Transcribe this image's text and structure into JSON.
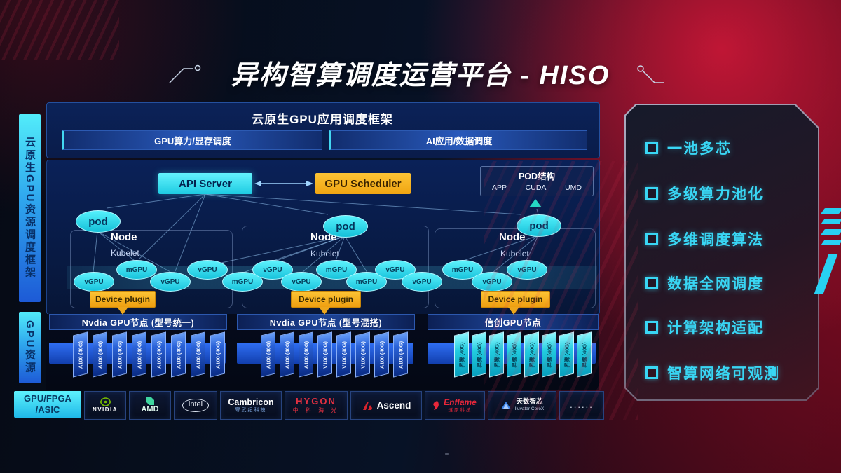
{
  "title": "异构智算调度运营平台 - HISO",
  "sidebar": {
    "framework_label": "云原生GPU资源调度框架",
    "resource_label": "GPU资源"
  },
  "framework": {
    "title": "云原生GPU应用调度框架",
    "left_bar": "GPU算力/显存调度",
    "right_bar": "AI应用/数据调度"
  },
  "scheduling": {
    "api_server": "API Server",
    "gpu_scheduler": "GPU Scheduler",
    "pod_structure": {
      "title": "POD结构",
      "items": [
        "APP",
        "CUDA",
        "UMD"
      ]
    },
    "pod_label": "pod",
    "node_label": "Node",
    "kubelet_label": "Kubelet",
    "device_plugin_label": "Device plugin",
    "gpu_units": [
      "vGPU",
      "mGPU",
      "vGPU",
      "vGPU",
      "mGPU",
      "vGPU",
      "vGPU",
      "mGPU",
      "mGPU",
      "vGPU",
      "vGPU",
      "mGPU",
      "vGPU",
      "vGPU"
    ]
  },
  "gpu_rows": [
    {
      "header": "Nvdia GPU节点 (型号统一)",
      "variant": "blue",
      "cards": [
        "A100 (40G)",
        "A100 (40G)",
        "A100 (40G)",
        "A100 (40G)",
        "A100 (40G)",
        "A100 (40G)",
        "A100 (40G)",
        "A100 (40G)"
      ]
    },
    {
      "header": "Nvdia GPU节点 (型号混搭)",
      "variant": "blue",
      "cards": [
        "A100 (40G)",
        "A100 (40G)",
        "A100 (40G)",
        "V100 (40G)",
        "V100 (40G)",
        "V100 (40G)",
        "A100 (40G)",
        "A100 (40G)"
      ]
    },
    {
      "header": "信创GPU节点",
      "variant": "cyan",
      "cards": [
        "昇腾 (40G)",
        "昇腾 (40G)",
        "昇腾 (40G)",
        "昇腾 (40G)",
        "昇腾 (40G)",
        "昇腾 (40G)",
        "昇腾 (40G)",
        "昇腾 (40G)"
      ]
    }
  ],
  "hardware_box": {
    "line1": "GPU/FPGA",
    "line2": "/ASIC"
  },
  "vendors": [
    {
      "id": "nvidia",
      "name": "NVIDIA",
      "icon": "nvidia-eye-icon"
    },
    {
      "id": "amd",
      "name": "AMD",
      "icon": "amd-arrow-icon"
    },
    {
      "id": "intel",
      "name": "intel",
      "icon": "intel-oval-icon"
    },
    {
      "id": "cambricon",
      "name": "Cambricon",
      "sub": "寒武纪科技"
    },
    {
      "id": "hygon",
      "name": "HYGON",
      "sub": "中 科 海 光"
    },
    {
      "id": "ascend",
      "name": "Ascend",
      "icon": "ascend-logo-icon"
    },
    {
      "id": "enflame",
      "name": "Enflame",
      "sub": "燧原科技",
      "icon": "enflame-flame-icon"
    },
    {
      "id": "iluvatar",
      "name": "天数智芯",
      "sub": "Iluvatar CoreX",
      "icon": "iluvatar-triangle-icon"
    },
    {
      "id": "more",
      "name": "......"
    }
  ],
  "features": [
    "一池多芯",
    "多级算力池化",
    "多维调度算法",
    "数据全网调度",
    "计算架构适配",
    "智算网络可观测"
  ],
  "colors": {
    "accent_cyan": "#3be2f5",
    "accent_orange": "#f6b01e",
    "accent_red": "#c01030",
    "card_blue": "#2e6cec",
    "panel_blue": "#0a2158",
    "feature_cyan": "#39d6f4"
  }
}
